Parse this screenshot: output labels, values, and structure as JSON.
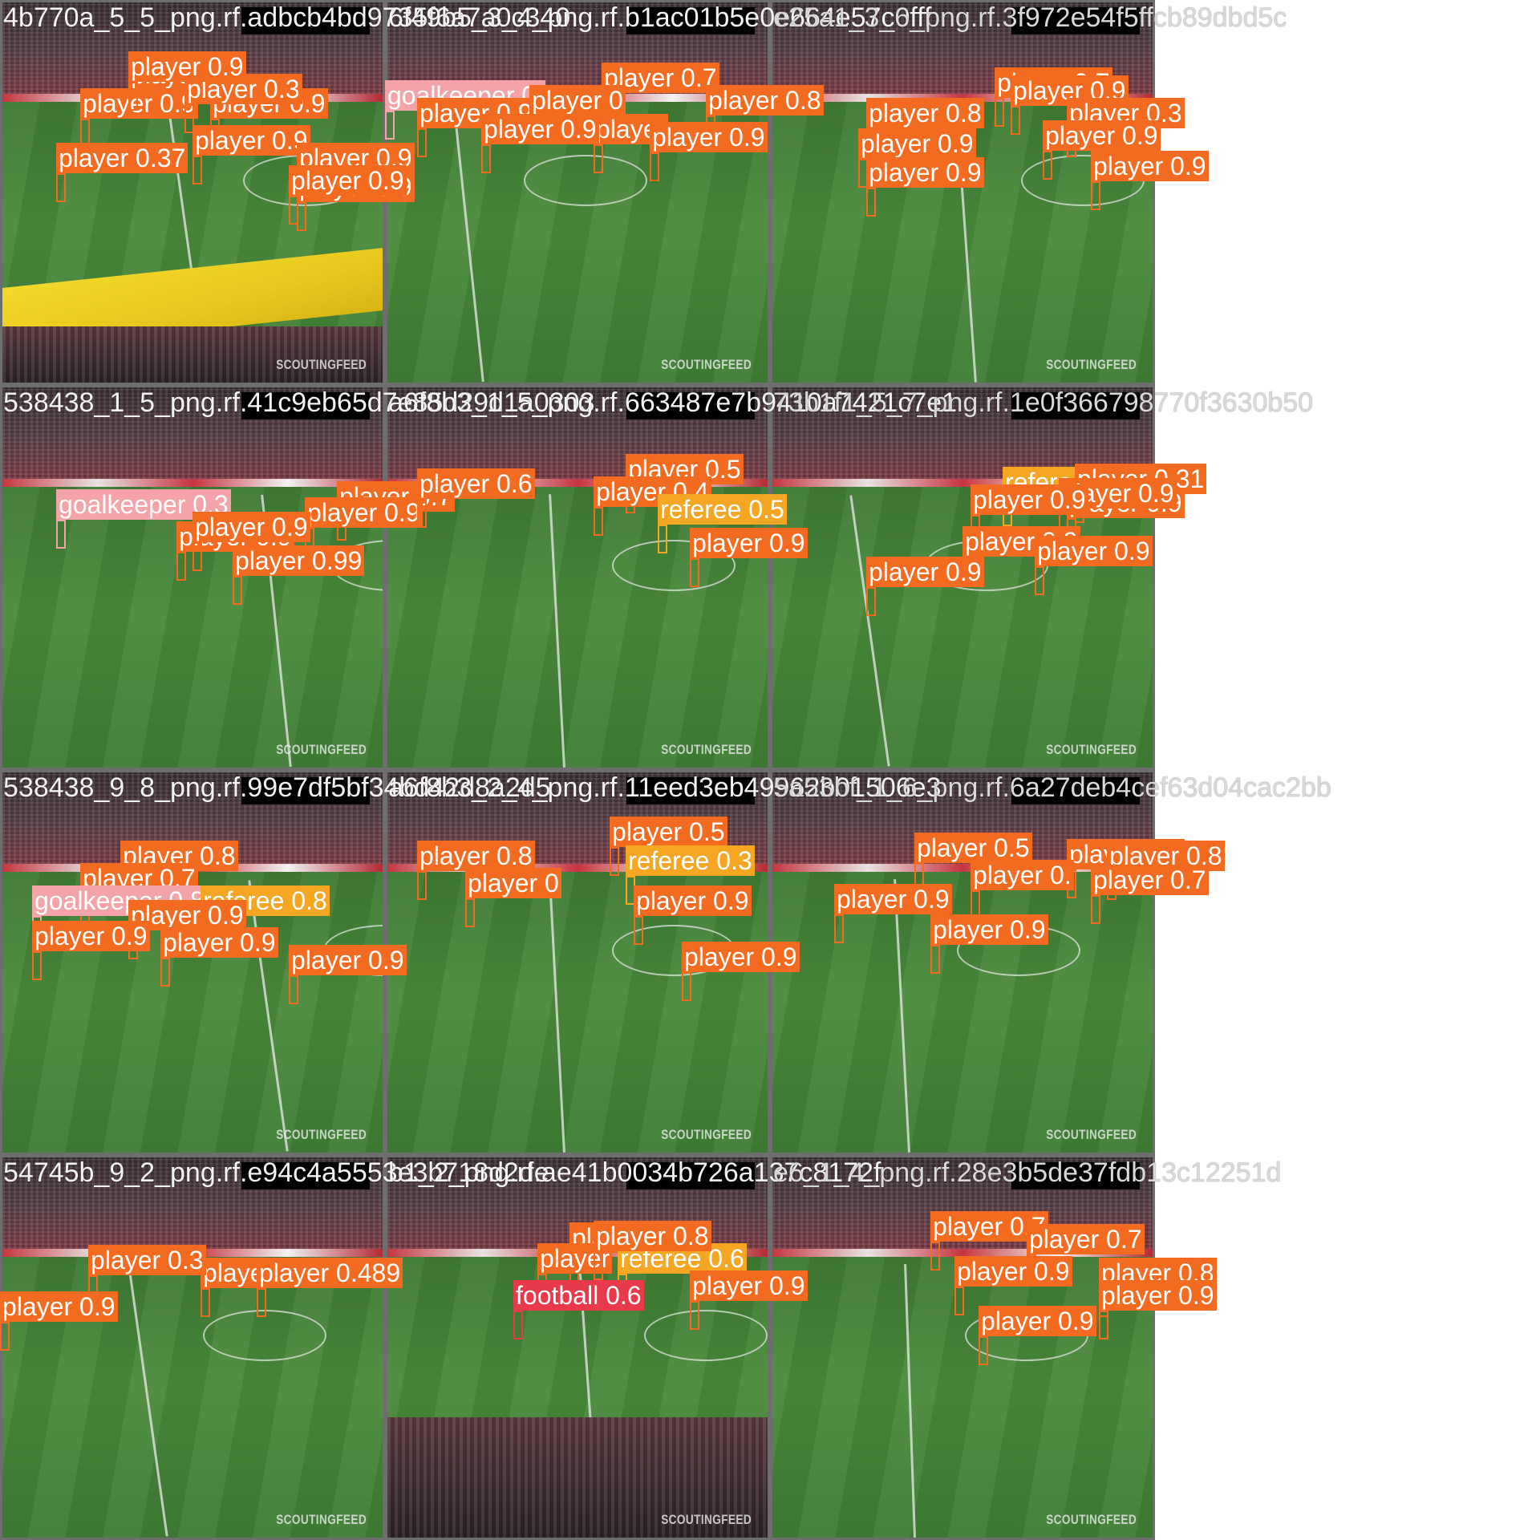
{
  "mosaic": {
    "watermark_text": "SCOUTINGFEED",
    "class_colors": {
      "player": "#f26b21",
      "goalkeeper": "#f4a3a9",
      "referee": "#f5a623",
      "football": "#e83a4a"
    },
    "tiles": [
      {
        "name": "4b770a_5_5_png.rf.adbcb4bd9735f6a7a0c340",
        "title": "4b770a_5_5_png.rf.adbcb4bd9735f6a7a0c340",
        "variant": "dortmund",
        "labels": [
          {
            "cls": "player",
            "text": "player 0.8"
          },
          {
            "cls": "player",
            "text": "player 0.9"
          },
          {
            "cls": "player",
            "text": "player 0.9"
          },
          {
            "cls": "player",
            "text": "player 0.37"
          },
          {
            "cls": "player",
            "text": "player 0.9"
          },
          {
            "cls": "player",
            "text": "player 0.9"
          },
          {
            "cls": "player",
            "text": "player 0.3"
          },
          {
            "cls": "player",
            "text": "player 0.9"
          },
          {
            "cls": "player",
            "text": "player 0.9"
          },
          {
            "cls": "player",
            "text": "player 0.9"
          }
        ]
      },
      {
        "name": "6f49b5_3_4_png.rf.b1ac01b5e0e664e57c0fff",
        "title": "6f49b5_3_4_png.rf.b1ac01b5e0e664e57c0fff",
        "variant": "field",
        "labels": [
          {
            "cls": "goalkeeper",
            "text": "goalkeeper 0."
          },
          {
            "cls": "player",
            "text": "player 0.7"
          },
          {
            "cls": "player",
            "text": "player 0.8"
          },
          {
            "cls": "player",
            "text": "player 0.9"
          },
          {
            "cls": "player",
            "text": "player 0"
          },
          {
            "cls": "player",
            "text": "player"
          },
          {
            "cls": "player",
            "text": "player 0.9"
          },
          {
            "cls": "player",
            "text": "player 0.9"
          }
        ]
      },
      {
        "name": "e25a1_3_6_png.rf.3f972e54f5ffcb89dbd5c",
        "title": "e25a1_3_6_png.rf.3f972e54f5ffcb89dbd5c",
        "variant": "field",
        "labels": [
          {
            "cls": "player",
            "text": "player 0.7"
          },
          {
            "cls": "player",
            "text": "player 0.9"
          },
          {
            "cls": "player",
            "text": "player 0.8"
          },
          {
            "cls": "player",
            "text": "player 0.3"
          },
          {
            "cls": "player",
            "text": "player 0.9"
          },
          {
            "cls": "player",
            "text": "player 0.9"
          },
          {
            "cls": "player",
            "text": "player 0.9"
          },
          {
            "cls": "player",
            "text": "player 0.9"
          }
        ]
      },
      {
        "name": "538438_1_5_png.rf.41c9eb65d7e85d29d1a0303",
        "title": "538438_1_5_png.rf.41c9eb65d7e85d29d1a0303",
        "variant": "field",
        "labels": [
          {
            "cls": "player",
            "text": "player 0.7"
          },
          {
            "cls": "goalkeeper",
            "text": "goalkeeper 0.3"
          },
          {
            "cls": "player",
            "text": "player 0.9"
          },
          {
            "cls": "player",
            "text": "player 0.9"
          },
          {
            "cls": "player",
            "text": "player 0.9"
          },
          {
            "cls": "player",
            "text": "player 0.99"
          }
        ]
      },
      {
        "name": "a6f8b3_1_5_png.rf.663487e7b9410a7421c7e1",
        "title": "a6f8b3_1_5_png.rf.663487e7b9410a7421c7e1",
        "variant": "field",
        "labels": [
          {
            "cls": "player",
            "text": "player 0.6"
          },
          {
            "cls": "player",
            "text": "player 0.5"
          },
          {
            "cls": "player",
            "text": "player 0.4"
          },
          {
            "cls": "referee",
            "text": "referee 0.5"
          },
          {
            "cls": "player",
            "text": "player 0.9"
          }
        ]
      },
      {
        "name": "73b1f1_5_7_png.rf.1e0f366798770f3630b50",
        "title": "73b1f1_5_7_png.rf.1e0f366798770f3630b50",
        "variant": "field",
        "labels": [
          {
            "cls": "referee",
            "text": "referee"
          },
          {
            "cls": "player",
            "text": "player 0.31"
          },
          {
            "cls": "player",
            "text": "player 0.9"
          },
          {
            "cls": "player",
            "text": "player 0.9"
          },
          {
            "cls": "player",
            "text": "player 0.9"
          },
          {
            "cls": "player",
            "text": "player 0.9"
          },
          {
            "cls": "player",
            "text": "player 0.9"
          },
          {
            "cls": "player",
            "text": "player 0.9"
          }
        ]
      },
      {
        "name": "538438_9_8_png.rf.99e7df5bf34bd42d8a2d5",
        "title": "538438_9_8_png.rf.99e7df5bf34bd42d8a2d5",
        "variant": "field",
        "labels": [
          {
            "cls": "player",
            "text": "player 0.8"
          },
          {
            "cls": "player",
            "text": "player 0.7"
          },
          {
            "cls": "goalkeeper",
            "text": "goalkeeper 0.8"
          },
          {
            "cls": "referee",
            "text": "referee 0.8"
          },
          {
            "cls": "player",
            "text": "player 0.9"
          },
          {
            "cls": "player",
            "text": "player 0.9"
          },
          {
            "cls": "player",
            "text": "player 0.9"
          },
          {
            "cls": "player",
            "text": "player 0.9"
          }
        ]
      },
      {
        "name": "a6f8b3_2_4_png.rf.11eed3eb49962b01506e3",
        "title": "a6f8b3_2_4_png.rf.11eed3eb49962b01506e3",
        "variant": "field",
        "labels": [
          {
            "cls": "player",
            "text": "player 0.5"
          },
          {
            "cls": "player",
            "text": "player 0.8"
          },
          {
            "cls": "referee",
            "text": "referee 0.3"
          },
          {
            "cls": "player",
            "text": "player 0"
          },
          {
            "cls": "player",
            "text": "player 0.9"
          },
          {
            "cls": "player",
            "text": "player 0.9"
          }
        ]
      },
      {
        "name": "5a53bf_1_6_png.rf.6a27deb4cef63d04cac2bb",
        "title": "5a53bf_1_6_png.rf.6a27deb4cef63d04cac2bb",
        "variant": "field",
        "labels": [
          {
            "cls": "player",
            "text": "player 0.5"
          },
          {
            "cls": "player",
            "text": "player 0.7"
          },
          {
            "cls": "player",
            "text": "player 0.8"
          },
          {
            "cls": "player",
            "text": "player 0.7"
          },
          {
            "cls": "player",
            "text": "player 0.9"
          },
          {
            "cls": "player",
            "text": "player 0."
          },
          {
            "cls": "player",
            "text": "player 0.9"
          }
        ]
      },
      {
        "name": "54745b_9_2_png.rf.e94c4a5553e3b718d2de",
        "title": "54745b_9_2_png.rf.e94c4a5553e3b718d2de",
        "variant": "field",
        "labels": [
          {
            "cls": "player",
            "text": "player 0.3"
          },
          {
            "cls": "player",
            "text": "player 0.3"
          },
          {
            "cls": "player",
            "text": "player 0.489"
          },
          {
            "cls": "player",
            "text": "player 0.9"
          }
        ]
      },
      {
        "name": "b1_2_png.rf.ae41b0034b726a137c8172f",
        "title": "b1_2_png.rf.ae41b0034b726a137c8172f",
        "variant": "redstand",
        "labels": [
          {
            "cls": "player",
            "text": "player 0.7"
          },
          {
            "cls": "player",
            "text": "player"
          },
          {
            "cls": "referee",
            "text": "referee 0.6"
          },
          {
            "cls": "player",
            "text": "player 0.8"
          },
          {
            "cls": "football",
            "text": "football 0.6"
          },
          {
            "cls": "player",
            "text": "player 0.9"
          }
        ]
      },
      {
        "name": "e6_1_4_png.rf.28e3b5de37fdb13c12251d",
        "title": "e6_1_4_png.rf.28e3b5de37fdb13c12251d",
        "variant": "field",
        "labels": [
          {
            "cls": "player",
            "text": "player 0.7"
          },
          {
            "cls": "player",
            "text": "player 0.7"
          },
          {
            "cls": "player",
            "text": "player 0.9"
          },
          {
            "cls": "player",
            "text": "player 0.8"
          },
          {
            "cls": "player",
            "text": "player 0.9"
          },
          {
            "cls": "player",
            "text": "player 0.9"
          }
        ]
      }
    ]
  }
}
